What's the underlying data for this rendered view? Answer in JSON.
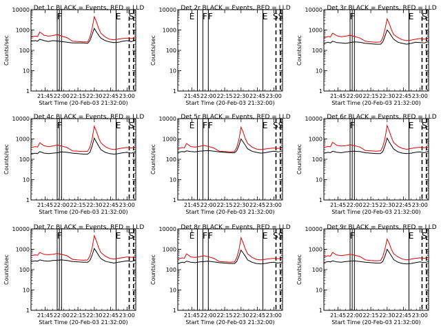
{
  "chart_data": {
    "type": "line",
    "layout": "3x3 grid",
    "y_scale": "log",
    "ylim": [
      1,
      10000
    ],
    "ytick_labels": [
      "1",
      "10",
      "100",
      "1000",
      "10000"
    ],
    "x_tick_labels": [
      "21:45",
      "22:00",
      "22:15",
      "22:30",
      "22:45",
      "23:00"
    ],
    "xlim": [
      "21:32",
      "23:08"
    ],
    "xlabel": "Start Time (20-Feb-03 21:32:00)",
    "ylabel": "Counts/sec",
    "grid": false,
    "colors": {
      "events": "#000000",
      "lld": "#e00000"
    },
    "x": [
      "21:32",
      "21:36",
      "21:38",
      "21:40",
      "21:44",
      "21:48",
      "21:52",
      "21:56",
      "22:00",
      "22:05",
      "22:10",
      "22:15",
      "22:20",
      "22:24",
      "22:26",
      "22:28",
      "22:30",
      "22:32",
      "22:34",
      "22:36",
      "22:40",
      "22:44",
      "22:48",
      "22:52",
      "22:56",
      "23:00",
      "23:04",
      "23:08"
    ],
    "panels": [
      {
        "title": "Det 1c BLACK = Events, RED = LLD",
        "series": [
          {
            "color": "#000000",
            "values": [
              280,
              300,
              280,
              350,
              300,
              270,
              300,
              290,
              270,
              250,
              230,
              230,
              230,
              220,
              300,
              600,
              1200,
              800,
              550,
              400,
              300,
              260,
              240,
              250,
              280,
              300,
              270,
              330
            ]
          },
          {
            "color": "#e00000",
            "values": [
              450,
              500,
              480,
              800,
              550,
              500,
              530,
              600,
              500,
              420,
              280,
              270,
              260,
              260,
              450,
              1200,
              4500,
              2500,
              1200,
              700,
              450,
              350,
              330,
              360,
              380,
              400,
              380,
              420
            ]
          }
        ],
        "markers": [
          {
            "x": "21:56",
            "style": "solid"
          },
          {
            "x": "21:58",
            "style": "solid"
          },
          {
            "x": "22:00",
            "style": "solid"
          },
          {
            "x": "22:50",
            "style": "solid"
          },
          {
            "x": "23:02",
            "style": "dashed"
          },
          {
            "x": "23:06",
            "style": "dashed"
          }
        ],
        "labels": [
          {
            "x": "21:58",
            "text": "F"
          },
          {
            "x": "22:52",
            "text": "E"
          },
          {
            "x": "23:04",
            "text": "S"
          }
        ]
      },
      {
        "title": "Det 2r BLACK = Events, RED = LLD",
        "series": [],
        "markers": [
          {
            "x": "21:50",
            "style": "solid"
          },
          {
            "x": "21:55",
            "style": "solid"
          },
          {
            "x": "22:00",
            "style": "solid"
          },
          {
            "x": "22:50",
            "style": "solid"
          },
          {
            "x": "23:02",
            "style": "dashed"
          },
          {
            "x": "23:06",
            "style": "dashed"
          }
        ],
        "labels": [
          {
            "x": "21:45",
            "text": "E"
          },
          {
            "x": "21:57",
            "text": "F"
          },
          {
            "x": "22:02",
            "text": "F"
          },
          {
            "x": "22:52",
            "text": "E"
          },
          {
            "x": "23:04",
            "text": "SS"
          }
        ]
      },
      {
        "title": "Det 3r BLACK = Events, RED = LLD",
        "series": [
          {
            "color": "#000000",
            "values": [
              220,
              250,
              230,
              280,
              240,
              230,
              220,
              240,
              260,
              250,
              220,
              210,
              200,
              200,
              260,
              500,
              1000,
              750,
              500,
              350,
              250,
              220,
              200,
              220,
              250,
              240,
              230,
              270
            ]
          },
          {
            "color": "#e00000",
            "values": [
              420,
              480,
              450,
              700,
              520,
              470,
              500,
              550,
              480,
              400,
              280,
              260,
              250,
              260,
              420,
              1100,
              3500,
              2000,
              1000,
              600,
              420,
              330,
              300,
              320,
              350,
              380,
              350,
              400
            ]
          }
        ],
        "markers": [
          {
            "x": "21:56",
            "style": "solid"
          },
          {
            "x": "21:58",
            "style": "solid"
          },
          {
            "x": "22:00",
            "style": "solid"
          },
          {
            "x": "22:50",
            "style": "solid"
          },
          {
            "x": "23:02",
            "style": "dashed"
          },
          {
            "x": "23:06",
            "style": "dashed"
          }
        ],
        "labels": [
          {
            "x": "21:58",
            "text": "F"
          },
          {
            "x": "22:52",
            "text": "E"
          },
          {
            "x": "23:04",
            "text": "S"
          }
        ]
      },
      {
        "title": "Det 4c BLACK = Events, RED = LLD",
        "series": [
          {
            "color": "#000000",
            "values": [
              180,
              200,
              190,
              240,
              200,
              190,
              200,
              210,
              230,
              220,
              200,
              190,
              180,
              180,
              220,
              450,
              1100,
              700,
              450,
              300,
              220,
              190,
              180,
              190,
              210,
              220,
              200,
              240
            ]
          },
          {
            "color": "#e00000",
            "values": [
              380,
              420,
              400,
              650,
              460,
              420,
              450,
              500,
              450,
              380,
              260,
              250,
              240,
              250,
              400,
              1000,
              4200,
              2300,
              1100,
              650,
              420,
              330,
              300,
              330,
              360,
              380,
              360,
              400
            ]
          }
        ],
        "markers": [
          {
            "x": "21:56",
            "style": "solid"
          },
          {
            "x": "21:58",
            "style": "solid"
          },
          {
            "x": "22:00",
            "style": "solid"
          },
          {
            "x": "22:50",
            "style": "solid"
          },
          {
            "x": "23:02",
            "style": "dashed"
          },
          {
            "x": "23:06",
            "style": "dashed"
          }
        ],
        "labels": [
          {
            "x": "21:58",
            "text": "F"
          },
          {
            "x": "22:52",
            "text": "E"
          },
          {
            "x": "23:04",
            "text": "S"
          }
        ]
      },
      {
        "title": "Det 5r BLACK = Events, RED = LLD",
        "series": [
          {
            "color": "#000000",
            "values": [
              220,
              240,
              230,
              260,
              240,
              230,
              250,
              260,
              270,
              250,
              230,
              220,
              210,
              210,
              260,
              480,
              1000,
              700,
              480,
              330,
              250,
              220,
              200,
              210,
              230,
              250,
              230,
              260
            ]
          },
          {
            "color": "#e00000",
            "values": [
              330,
              380,
              360,
              600,
              420,
              400,
              430,
              480,
              430,
              360,
              250,
              240,
              230,
              240,
              380,
              900,
              3800,
              2100,
              1000,
              600,
              400,
              320,
              300,
              320,
              340,
              360,
              340,
              380
            ]
          }
        ],
        "markers": [
          {
            "x": "21:50",
            "style": "solid"
          },
          {
            "x": "21:55",
            "style": "solid"
          },
          {
            "x": "22:00",
            "style": "solid"
          },
          {
            "x": "22:50",
            "style": "solid"
          },
          {
            "x": "23:02",
            "style": "dashed"
          },
          {
            "x": "23:06",
            "style": "dashed"
          }
        ],
        "labels": [
          {
            "x": "21:45",
            "text": "E"
          },
          {
            "x": "21:57",
            "text": "F"
          },
          {
            "x": "22:02",
            "text": "F"
          },
          {
            "x": "22:52",
            "text": "E"
          },
          {
            "x": "23:04",
            "text": "SS"
          }
        ]
      },
      {
        "title": "Det 6r BLACK = Events, RED = LLD",
        "series": [
          {
            "color": "#000000",
            "values": [
              200,
              220,
              210,
              250,
              220,
              210,
              230,
              240,
              250,
              240,
              210,
              200,
              190,
              190,
              240,
              460,
              1100,
              700,
              470,
              320,
              230,
              200,
              190,
              200,
              220,
              230,
              210,
              250
            ]
          },
          {
            "color": "#e00000",
            "values": [
              380,
              430,
              410,
              680,
              480,
              450,
              470,
              520,
              470,
              400,
              270,
              260,
              250,
              260,
              420,
              1050,
              4600,
              2400,
              1150,
              660,
              430,
              340,
              310,
              340,
              370,
              390,
              370,
              410
            ]
          }
        ],
        "markers": [
          {
            "x": "21:56",
            "style": "solid"
          },
          {
            "x": "21:58",
            "style": "solid"
          },
          {
            "x": "22:00",
            "style": "solid"
          },
          {
            "x": "22:50",
            "style": "solid"
          },
          {
            "x": "23:02",
            "style": "dashed"
          },
          {
            "x": "23:06",
            "style": "dashed"
          }
        ],
        "labels": [
          {
            "x": "21:58",
            "text": "F"
          },
          {
            "x": "22:52",
            "text": "E"
          },
          {
            "x": "23:04",
            "text": "S"
          }
        ]
      },
      {
        "title": "Det 7c BLACK = Events, RED = LLD",
        "series": [
          {
            "color": "#000000",
            "values": [
              250,
              270,
              260,
              300,
              270,
              260,
              280,
              290,
              300,
              280,
              250,
              240,
              230,
              230,
              280,
              520,
              1100,
              750,
              500,
              350,
              260,
              230,
              210,
              230,
              250,
              270,
              250,
              290
            ]
          },
          {
            "color": "#e00000",
            "values": [
              480,
              530,
              510,
              700,
              560,
              540,
              570,
              620,
              560,
              480,
              320,
              300,
              290,
              300,
              480,
              1150,
              4700,
              2500,
              1200,
              700,
              460,
              360,
              330,
              360,
              390,
              420,
              400,
              440
            ]
          }
        ],
        "markers": [
          {
            "x": "21:56",
            "style": "solid"
          },
          {
            "x": "21:58",
            "style": "solid"
          },
          {
            "x": "22:00",
            "style": "solid"
          },
          {
            "x": "22:50",
            "style": "solid"
          },
          {
            "x": "23:02",
            "style": "dashed"
          },
          {
            "x": "23:06",
            "style": "dashed"
          }
        ],
        "labels": [
          {
            "x": "21:58",
            "text": "F"
          },
          {
            "x": "22:52",
            "text": "E"
          },
          {
            "x": "23:04",
            "text": "S"
          }
        ]
      },
      {
        "title": "Det 8r BLACK = Events, RED = LLD",
        "series": [
          {
            "color": "#000000",
            "values": [
              200,
              230,
              220,
              260,
              230,
              220,
              240,
              250,
              260,
              240,
              220,
              210,
              200,
              200,
              250,
              450,
              900,
              650,
              450,
              300,
              230,
              200,
              190,
              200,
              220,
              230,
              210,
              240
            ]
          },
          {
            "color": "#e00000",
            "values": [
              330,
              380,
              360,
              600,
              420,
              400,
              430,
              480,
              430,
              360,
              250,
              240,
              230,
              240,
              380,
              900,
              3700,
              2000,
              1000,
              600,
              400,
              320,
              300,
              320,
              340,
              360,
              340,
              380
            ]
          }
        ],
        "markers": [
          {
            "x": "21:50",
            "style": "solid"
          },
          {
            "x": "21:55",
            "style": "solid"
          },
          {
            "x": "22:00",
            "style": "solid"
          },
          {
            "x": "22:50",
            "style": "solid"
          },
          {
            "x": "23:02",
            "style": "dashed"
          },
          {
            "x": "23:06",
            "style": "dashed"
          }
        ],
        "labels": [
          {
            "x": "21:45",
            "text": "E"
          },
          {
            "x": "21:57",
            "text": "F"
          },
          {
            "x": "22:02",
            "text": "F"
          },
          {
            "x": "22:52",
            "text": "E"
          },
          {
            "x": "23:04",
            "text": "SS"
          }
        ]
      },
      {
        "title": "Det 9r BLACK = Events, RED = LLD",
        "series": [
          {
            "color": "#000000",
            "values": [
              220,
              250,
              240,
              270,
              240,
              230,
              250,
              260,
              270,
              250,
              230,
              220,
              210,
              210,
              250,
              460,
              1000,
              680,
              460,
              310,
              230,
              200,
              190,
              200,
              220,
              240,
              220,
              250
            ]
          },
          {
            "color": "#e00000",
            "values": [
              430,
              480,
              460,
              700,
              520,
              490,
              520,
              570,
              510,
              440,
              300,
              280,
              270,
              280,
              440,
              1050,
              3200,
              1900,
              950,
              600,
              420,
              330,
              300,
              330,
              360,
              380,
              360,
              400
            ]
          }
        ],
        "markers": [
          {
            "x": "21:56",
            "style": "solid"
          },
          {
            "x": "21:58",
            "style": "solid"
          },
          {
            "x": "22:00",
            "style": "solid"
          },
          {
            "x": "22:50",
            "style": "solid"
          },
          {
            "x": "23:02",
            "style": "dashed"
          },
          {
            "x": "23:06",
            "style": "dashed"
          }
        ],
        "labels": [
          {
            "x": "21:58",
            "text": "F"
          },
          {
            "x": "22:52",
            "text": "E"
          },
          {
            "x": "23:04",
            "text": "S"
          }
        ]
      }
    ]
  }
}
